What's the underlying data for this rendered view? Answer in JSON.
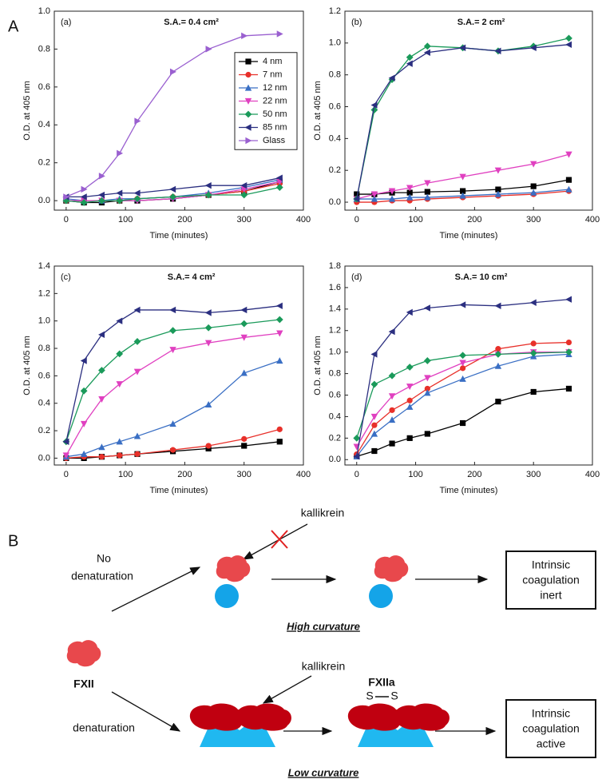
{
  "figure_labels": [
    "A",
    "B"
  ],
  "chart_data": [
    {
      "type": "line",
      "panel": "(a)",
      "title": "S.A.= 0.4 cm²",
      "x_label": "Time (minutes)",
      "y_label": "O.D. at 405 nm",
      "x": [
        0,
        30,
        60,
        90,
        120,
        180,
        240,
        300,
        360
      ],
      "xlim": [
        -20,
        400
      ],
      "xticks": [
        0,
        100,
        200,
        300,
        400
      ],
      "ylim": [
        -0.05,
        1.0
      ],
      "yticks": [
        {
          "value": 0,
          "label": "0.0"
        },
        0.2,
        0.4,
        0.6,
        0.8,
        {
          "value": 1,
          "label": "1.0"
        }
      ],
      "legend": "center right",
      "series": [
        {
          "name": "4 nm",
          "color": "#000000",
          "marker": "square",
          "values": [
            0.0,
            -0.01,
            -0.01,
            0.0,
            0.0,
            0.01,
            0.03,
            0.05,
            0.1
          ]
        },
        {
          "name": "7 nm",
          "color": "#e8302a",
          "marker": "circle",
          "values": [
            0.0,
            0.0,
            0.0,
            0.0,
            0.01,
            0.02,
            0.03,
            0.05,
            0.09
          ]
        },
        {
          "name": "12 nm",
          "color": "#3a6fc4",
          "marker": "triangle-up",
          "values": [
            0.01,
            0.0,
            0.0,
            0.01,
            0.01,
            0.02,
            0.04,
            0.07,
            0.11
          ]
        },
        {
          "name": "22 nm",
          "color": "#e040c0",
          "marker": "triangle-down",
          "values": [
            0.0,
            0.0,
            0.0,
            0.0,
            0.0,
            0.01,
            0.03,
            0.06,
            0.1
          ]
        },
        {
          "name": "50 nm",
          "color": "#1a9a5a",
          "marker": "diamond",
          "values": [
            0.0,
            -0.01,
            0.0,
            0.0,
            0.01,
            0.02,
            0.03,
            0.03,
            0.07
          ]
        },
        {
          "name": "85 nm",
          "color": "#2b2f80",
          "marker": "triangle-left",
          "values": [
            0.02,
            0.02,
            0.03,
            0.04,
            0.04,
            0.06,
            0.08,
            0.08,
            0.12
          ]
        },
        {
          "name": "Glass",
          "color": "#9a60d0",
          "marker": "triangle-right",
          "values": [
            0.02,
            0.06,
            0.13,
            0.25,
            0.42,
            0.68,
            0.8,
            0.87,
            0.88
          ]
        }
      ]
    },
    {
      "type": "line",
      "panel": "(b)",
      "title": "S.A.= 2 cm²",
      "x_label": "Time (minutes)",
      "y_label": "O.D. at 405 nm",
      "x": [
        0,
        30,
        60,
        90,
        120,
        180,
        240,
        300,
        360
      ],
      "xlim": [
        -20,
        400
      ],
      "xticks": [
        0,
        100,
        200,
        300,
        400
      ],
      "ylim": [
        -0.05,
        1.2
      ],
      "yticks": [
        {
          "value": 0,
          "label": "0.0"
        },
        0.2,
        0.4,
        0.6,
        0.8,
        {
          "value": 1,
          "label": "1.0"
        },
        1.2
      ],
      "series": [
        {
          "color": "#000000",
          "marker": "square",
          "values": [
            0.05,
            0.05,
            0.06,
            0.06,
            0.065,
            0.07,
            0.08,
            0.1,
            0.14
          ]
        },
        {
          "color": "#e8302a",
          "marker": "circle",
          "values": [
            0.0,
            0.0,
            0.01,
            0.01,
            0.02,
            0.03,
            0.04,
            0.05,
            0.07
          ]
        },
        {
          "color": "#3a6fc4",
          "marker": "triangle-up",
          "values": [
            0.02,
            0.02,
            0.02,
            0.03,
            0.03,
            0.04,
            0.05,
            0.06,
            0.08
          ]
        },
        {
          "color": "#e040c0",
          "marker": "triangle-down",
          "values": [
            0.02,
            0.05,
            0.07,
            0.09,
            0.12,
            0.16,
            0.2,
            0.24,
            0.3
          ]
        },
        {
          "color": "#1a9a5a",
          "marker": "diamond",
          "values": [
            0.02,
            0.58,
            0.77,
            0.91,
            0.98,
            0.97,
            0.95,
            0.98,
            1.03
          ]
        },
        {
          "color": "#2b2f80",
          "marker": "triangle-left",
          "values": [
            0.02,
            0.61,
            0.78,
            0.87,
            0.94,
            0.97,
            0.95,
            0.97,
            0.99
          ]
        }
      ]
    },
    {
      "type": "line",
      "panel": "(c)",
      "title": "S.A.= 4 cm²",
      "x_label": "Time (minutes)",
      "y_label": "O.D. at 405 nm",
      "x": [
        0,
        30,
        60,
        90,
        120,
        180,
        240,
        300,
        360
      ],
      "xlim": [
        -20,
        400
      ],
      "xticks": [
        0,
        100,
        200,
        300,
        400
      ],
      "ylim": [
        -0.05,
        1.4
      ],
      "yticks": [
        {
          "value": 0,
          "label": "0.0"
        },
        0.2,
        0.4,
        0.6,
        0.8,
        {
          "value": 1,
          "label": "1.0"
        },
        1.2,
        1.4
      ],
      "series": [
        {
          "color": "#000000",
          "marker": "square",
          "values": [
            0.0,
            0.0,
            0.01,
            0.02,
            0.03,
            0.05,
            0.07,
            0.09,
            0.12
          ]
        },
        {
          "color": "#e8302a",
          "marker": "circle",
          "values": [
            0.0,
            0.01,
            0.01,
            0.02,
            0.03,
            0.06,
            0.09,
            0.14,
            0.21
          ]
        },
        {
          "color": "#3a6fc4",
          "marker": "triangle-up",
          "values": [
            0.01,
            0.03,
            0.08,
            0.12,
            0.16,
            0.25,
            0.39,
            0.62,
            0.71
          ]
        },
        {
          "color": "#e040c0",
          "marker": "triangle-down",
          "values": [
            0.02,
            0.25,
            0.43,
            0.54,
            0.63,
            0.79,
            0.84,
            0.88,
            0.91
          ]
        },
        {
          "color": "#1a9a5a",
          "marker": "diamond",
          "values": [
            0.12,
            0.49,
            0.64,
            0.76,
            0.85,
            0.93,
            0.95,
            0.98,
            1.01
          ]
        },
        {
          "color": "#2b2f80",
          "marker": "triangle-left",
          "values": [
            0.12,
            0.71,
            0.9,
            1.0,
            1.08,
            1.08,
            1.06,
            1.08,
            1.11
          ]
        }
      ]
    },
    {
      "type": "line",
      "panel": "(d)",
      "title": "S.A.= 10 cm²",
      "x_label": "Time (minutes)",
      "y_label": "O.D. at 405 nm",
      "x": [
        0,
        30,
        60,
        90,
        120,
        180,
        240,
        300,
        360
      ],
      "xlim": [
        -20,
        400
      ],
      "xticks": [
        0,
        100,
        200,
        300,
        400
      ],
      "ylim": [
        -0.05,
        1.8
      ],
      "yticks": [
        {
          "value": 0,
          "label": "0.0"
        },
        0.2,
        0.4,
        0.6,
        0.8,
        {
          "value": 1,
          "label": "1.0"
        },
        1.2,
        1.4,
        1.6,
        1.8
      ],
      "series": [
        {
          "color": "#000000",
          "marker": "square",
          "values": [
            0.03,
            0.08,
            0.15,
            0.2,
            0.24,
            0.34,
            0.54,
            0.63,
            0.66
          ]
        },
        {
          "color": "#e8302a",
          "marker": "circle",
          "values": [
            0.05,
            0.32,
            0.46,
            0.55,
            0.66,
            0.85,
            1.03,
            1.08,
            1.09
          ]
        },
        {
          "color": "#3a6fc4",
          "marker": "triangle-up",
          "values": [
            0.03,
            0.24,
            0.37,
            0.49,
            0.62,
            0.75,
            0.87,
            0.96,
            0.98
          ]
        },
        {
          "color": "#e040c0",
          "marker": "triangle-down",
          "values": [
            0.12,
            0.4,
            0.59,
            0.68,
            0.76,
            0.9,
            0.98,
            1.0,
            1.0
          ]
        },
        {
          "color": "#1a9a5a",
          "marker": "diamond",
          "values": [
            0.2,
            0.7,
            0.78,
            0.86,
            0.92,
            0.97,
            0.98,
            0.99,
            1.0
          ]
        },
        {
          "color": "#2b2f80",
          "marker": "triangle-left",
          "values": [
            0.03,
            0.98,
            1.19,
            1.37,
            1.41,
            1.44,
            1.43,
            1.46,
            1.49
          ]
        }
      ]
    }
  ],
  "diagram": {
    "start": "FXII",
    "upper_branch": [
      "No",
      "denaturation"
    ],
    "lower_branch": "denaturation",
    "enzyme_top": "kallikrein",
    "enzyme_bottom": "kallikrein",
    "product": "FXIIa",
    "bond": [
      "S",
      "S"
    ],
    "caption_top": "High curvature",
    "caption_bottom": "Low curvature",
    "outcome_top": [
      "Intrinsic",
      "coagulation",
      "inert"
    ],
    "outcome_bottom": [
      "Intrinsic",
      "coagulation",
      "active"
    ]
  }
}
